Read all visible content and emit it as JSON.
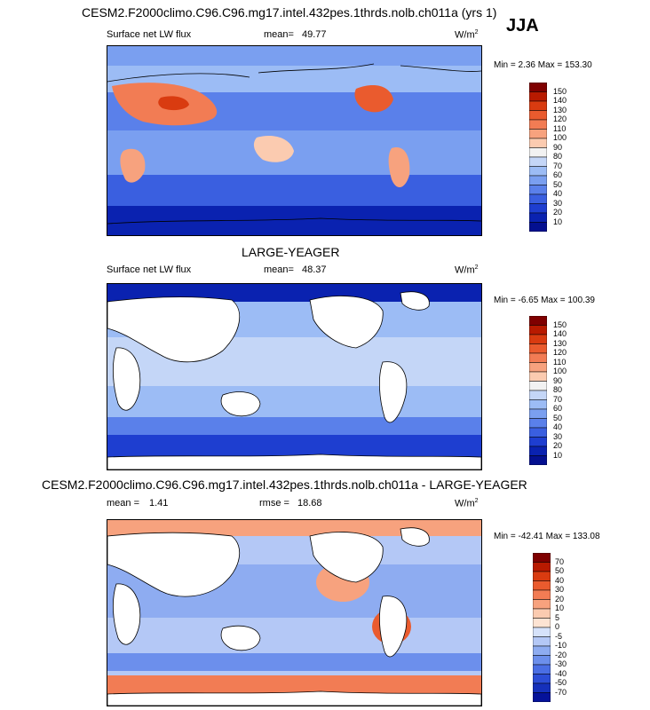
{
  "season": "JJA",
  "panels": [
    {
      "title": "CESM2.F2000climo.C96.C96.mg17.intel.432pes.1thrds.nolb.ch011a (yrs 1)",
      "left_label": "Surface net LW flux",
      "mean_label": "mean=",
      "mean_value": "49.77",
      "units": "W/m",
      "units_sup": "2",
      "minmax": "Min =   2.36 Max = 153.30"
    },
    {
      "title": "LARGE-YEAGER",
      "left_label": "Surface net LW flux",
      "mean_label": "mean=",
      "mean_value": "48.37",
      "units": "W/m",
      "units_sup": "2",
      "minmax": "Min =  -6.65 Max = 100.39"
    },
    {
      "title": "CESM2.F2000climo.C96.C96.mg17.intel.432pes.1thrds.nolb.ch011a - LARGE-YEAGER",
      "mean_label": "mean =",
      "mean_value": "1.41",
      "rmse_label": "rmse =",
      "rmse_value": "18.68",
      "units": "W/m",
      "units_sup": "2",
      "minmax": "Min = -42.41 Max = 133.08"
    }
  ],
  "colorbar_abs": {
    "labels": [
      "150",
      "140",
      "130",
      "120",
      "110",
      "100",
      "90",
      "80",
      "70",
      "60",
      "50",
      "40",
      "30",
      "20",
      "10"
    ],
    "colors": [
      "#7f0000",
      "#b81a00",
      "#d93b10",
      "#ea5b2e",
      "#f27c54",
      "#f7a27e",
      "#fbcbb0",
      "#f2f2f2",
      "#c4d6f7",
      "#9cbcf5",
      "#7a9ff0",
      "#5a80ea",
      "#3a5fe0",
      "#1e3ed0",
      "#0a22b0",
      "#041090"
    ]
  },
  "colorbar_diff": {
    "labels": [
      "70",
      "50",
      "40",
      "30",
      "20",
      "10",
      "5",
      "0",
      "-5",
      "-10",
      "-20",
      "-30",
      "-40",
      "-50",
      "-70"
    ],
    "colors": [
      "#7f0000",
      "#b81a00",
      "#d93b10",
      "#ea5b2e",
      "#f27c54",
      "#f7a27e",
      "#fbcbb0",
      "#fde3d3",
      "#d6e2fa",
      "#b4c8f6",
      "#8eacf1",
      "#6c8fec",
      "#4a6ee4",
      "#2c4dd6",
      "#1530bb",
      "#05129a"
    ]
  },
  "chart_data": [
    {
      "type": "heatmap",
      "title": "CESM2.F2000climo.C96.C96.mg17.intel.432pes.1thrds.nolb.ch011a (yrs 1)",
      "variable": "Surface net LW flux",
      "units": "W/m2",
      "mean": 49.77,
      "min": 2.36,
      "max": 153.3,
      "contour_levels": [
        10,
        20,
        30,
        40,
        50,
        60,
        70,
        80,
        90,
        100,
        110,
        120,
        130,
        140,
        150
      ]
    },
    {
      "type": "heatmap",
      "title": "LARGE-YEAGER",
      "variable": "Surface net LW flux",
      "units": "W/m2",
      "mean": 48.37,
      "min": -6.65,
      "max": 100.39,
      "contour_levels": [
        10,
        20,
        30,
        40,
        50,
        60,
        70,
        80,
        90,
        100,
        110,
        120,
        130,
        140,
        150
      ]
    },
    {
      "type": "heatmap",
      "title": "CESM2.F2000climo.C96.C96.mg17.intel.432pes.1thrds.nolb.ch011a - LARGE-YEAGER",
      "units": "W/m2",
      "mean": 1.41,
      "rmse": 18.68,
      "min": -42.41,
      "max": 133.08,
      "contour_levels": [
        -70,
        -50,
        -40,
        -30,
        -20,
        -10,
        -5,
        0,
        5,
        10,
        20,
        30,
        40,
        50,
        70
      ]
    }
  ]
}
